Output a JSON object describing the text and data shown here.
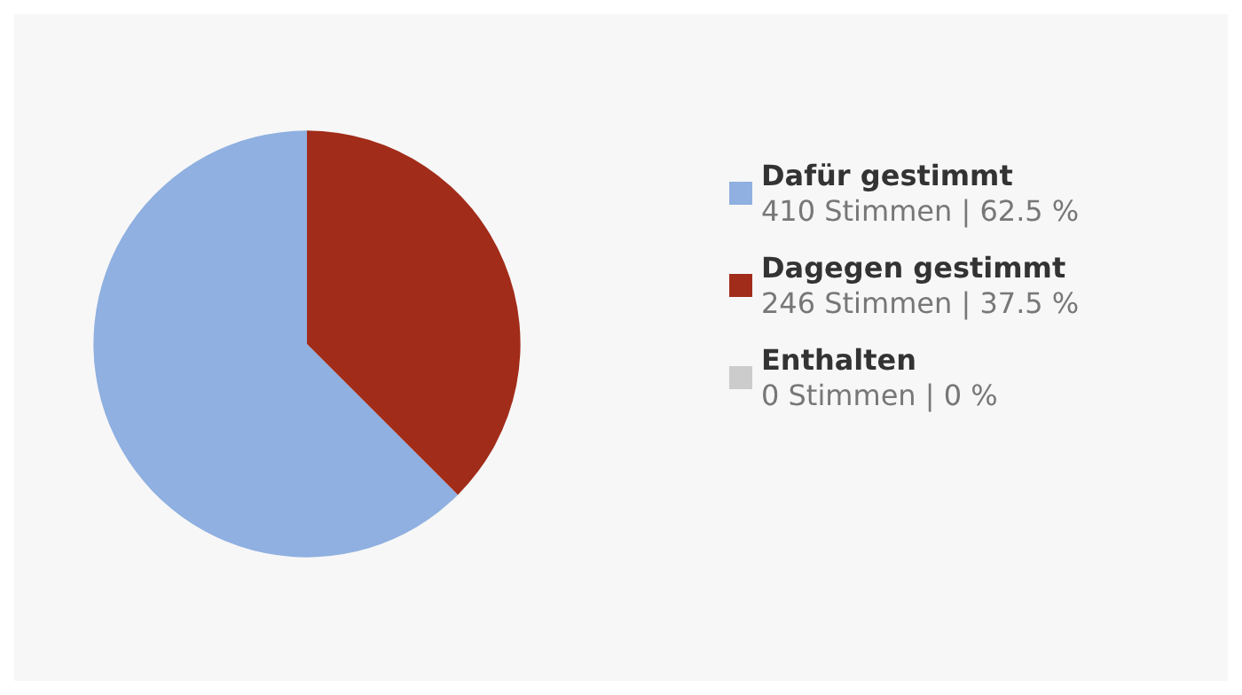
{
  "chart_data": {
    "type": "pie",
    "categories": [
      "Dafür gestimmt",
      "Dagegen gestimmt",
      "Enthalten"
    ],
    "values": [
      410,
      246,
      0
    ],
    "colors": [
      "#8fb0e0",
      "#a12c19",
      "#cccccc"
    ],
    "value_labels": [
      "410 Stimmen | 62.5 %",
      "246 Stimmen | 37.5 %",
      "0 Stimmen | 0 %"
    ],
    "legend": "right"
  }
}
